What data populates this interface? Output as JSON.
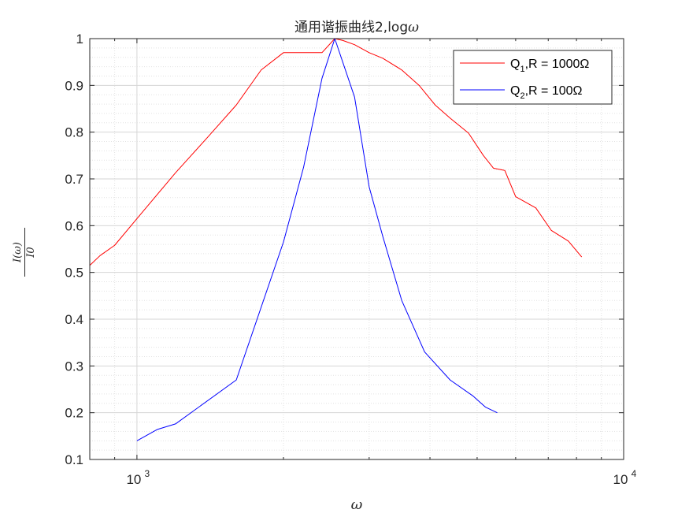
{
  "window": {
    "title": "通用谐振曲线2,logω"
  },
  "chart_data": {
    "type": "line",
    "title": "通用谐振曲线2,logω",
    "title_main": "通用谐振曲线2,log",
    "title_symbol": "ω",
    "xlabel": "ω",
    "ylabel_numerator": "I(ω)",
    "ylabel_denominator": "I0",
    "xscale": "log",
    "xlim": [
      800,
      10000
    ],
    "ylim": [
      0.1,
      1
    ],
    "grid": true,
    "minor_grid": true,
    "legend_position": "top-right",
    "xticks": [
      {
        "value": 1000,
        "base": "10",
        "exp": "3"
      },
      {
        "value": 10000,
        "base": "10",
        "exp": "4"
      }
    ],
    "yticks": [
      {
        "value": 0.1,
        "label": "0.1"
      },
      {
        "value": 0.2,
        "label": "0.2"
      },
      {
        "value": 0.3,
        "label": "0.3"
      },
      {
        "value": 0.4,
        "label": "0.4"
      },
      {
        "value": 0.5,
        "label": "0.5"
      },
      {
        "value": 0.6,
        "label": "0.6"
      },
      {
        "value": 0.7,
        "label": "0.7"
      },
      {
        "value": 0.8,
        "label": "0.8"
      },
      {
        "value": 0.9,
        "label": "0.9"
      },
      {
        "value": 1,
        "label": "1"
      }
    ],
    "series": [
      {
        "name": "Q1,R = 1000Ω",
        "legend_base": "Q",
        "legend_sub": "1",
        "legend_rest": ",R = 1000Ω",
        "color": "#ff0000",
        "x": [
          800,
          840,
          900,
          1000,
          1200,
          1400,
          1600,
          1800,
          2000,
          2200,
          2400,
          2550,
          2650,
          2800,
          3000,
          3200,
          3500,
          3800,
          4100,
          4400,
          4800,
          5150,
          5400,
          5700,
          6000,
          6600,
          7100,
          7700,
          8200
        ],
        "y": [
          0.515,
          0.536,
          0.558,
          0.615,
          0.713,
          0.79,
          0.858,
          0.933,
          0.97,
          0.97,
          0.97,
          1.0,
          0.996,
          0.987,
          0.97,
          0.958,
          0.933,
          0.9,
          0.858,
          0.83,
          0.798,
          0.75,
          0.723,
          0.718,
          0.662,
          0.638,
          0.59,
          0.567,
          0.533
        ]
      },
      {
        "name": "Q2,R = 100Ω",
        "legend_base": "Q",
        "legend_sub": "2",
        "legend_rest": ",R = 100Ω",
        "color": "#0000ff",
        "x": [
          1000,
          1100,
          1200,
          1600,
          2000,
          2200,
          2400,
          2550,
          2800,
          3000,
          3200,
          3500,
          3900,
          4400,
          4900,
          5200,
          5500
        ],
        "y": [
          0.14,
          0.164,
          0.176,
          0.27,
          0.565,
          0.725,
          0.915,
          1.0,
          0.875,
          0.683,
          0.577,
          0.44,
          0.33,
          0.27,
          0.236,
          0.212,
          0.2
        ]
      }
    ]
  }
}
